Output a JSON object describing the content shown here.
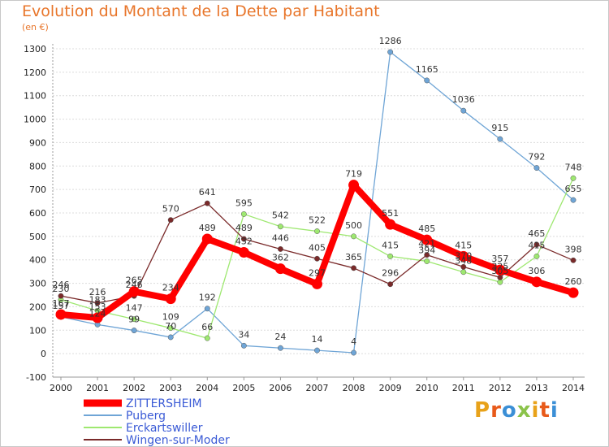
{
  "header": {
    "title": "Evolution du Montant de la Dette par Habitant",
    "subtitle": "(en €)"
  },
  "logo": {
    "text": "Proxiti",
    "letters": [
      {
        "ch": "P",
        "color": "#e8a21a"
      },
      {
        "ch": "r",
        "color": "#e85a1a"
      },
      {
        "ch": "o",
        "color": "#3b8fd6"
      },
      {
        "ch": "x",
        "color": "#8bc34a"
      },
      {
        "ch": "i",
        "color": "#e8a21a"
      },
      {
        "ch": "t",
        "color": "#e85a1a"
      },
      {
        "ch": "i",
        "color": "#3b8fd6"
      }
    ]
  },
  "chart_data": {
    "type": "line",
    "title": "Evolution du Montant de la Dette par Habitant",
    "ylabel": "(en €)",
    "x": [
      "2000",
      "2001",
      "2002",
      "2003",
      "2004",
      "2005",
      "2006",
      "2007",
      "2008",
      "2009",
      "2010",
      "2011",
      "2012",
      "2013",
      "2014"
    ],
    "ylim": [
      -100,
      1300
    ],
    "yticks": [
      -100,
      0,
      100,
      200,
      300,
      400,
      500,
      600,
      700,
      800,
      900,
      1000,
      1100,
      1200,
      1300
    ],
    "grid": "horizontal",
    "legend_position": "bottom-left",
    "series": [
      {
        "name": "ZITTERSHEIM",
        "color": "#ff0000",
        "values": [
          167,
          153,
          265,
          234,
          489,
          432,
          362,
          297,
          719,
          551,
          485,
          415,
          357,
          306,
          260
        ]
      },
      {
        "name": "Puberg",
        "color": "#6fa5d6",
        "values": [
          157,
          124,
          99,
          70,
          192,
          34,
          24,
          14,
          4,
          1286,
          1165,
          1036,
          915,
          792,
          655
        ]
      },
      {
        "name": "Erckartswiller",
        "color": "#9ee870",
        "values": [
          230,
          183,
          147,
          109,
          66,
          595,
          542,
          522,
          500,
          415,
          394,
          348,
          305,
          415,
          748
        ]
      },
      {
        "name": "Wingen-sur-Moder",
        "color": "#7a2a2a",
        "values": [
          246,
          216,
          246,
          570,
          641,
          489,
          446,
          405,
          365,
          296,
          421,
          370,
          325,
          465,
          398
        ]
      }
    ]
  }
}
